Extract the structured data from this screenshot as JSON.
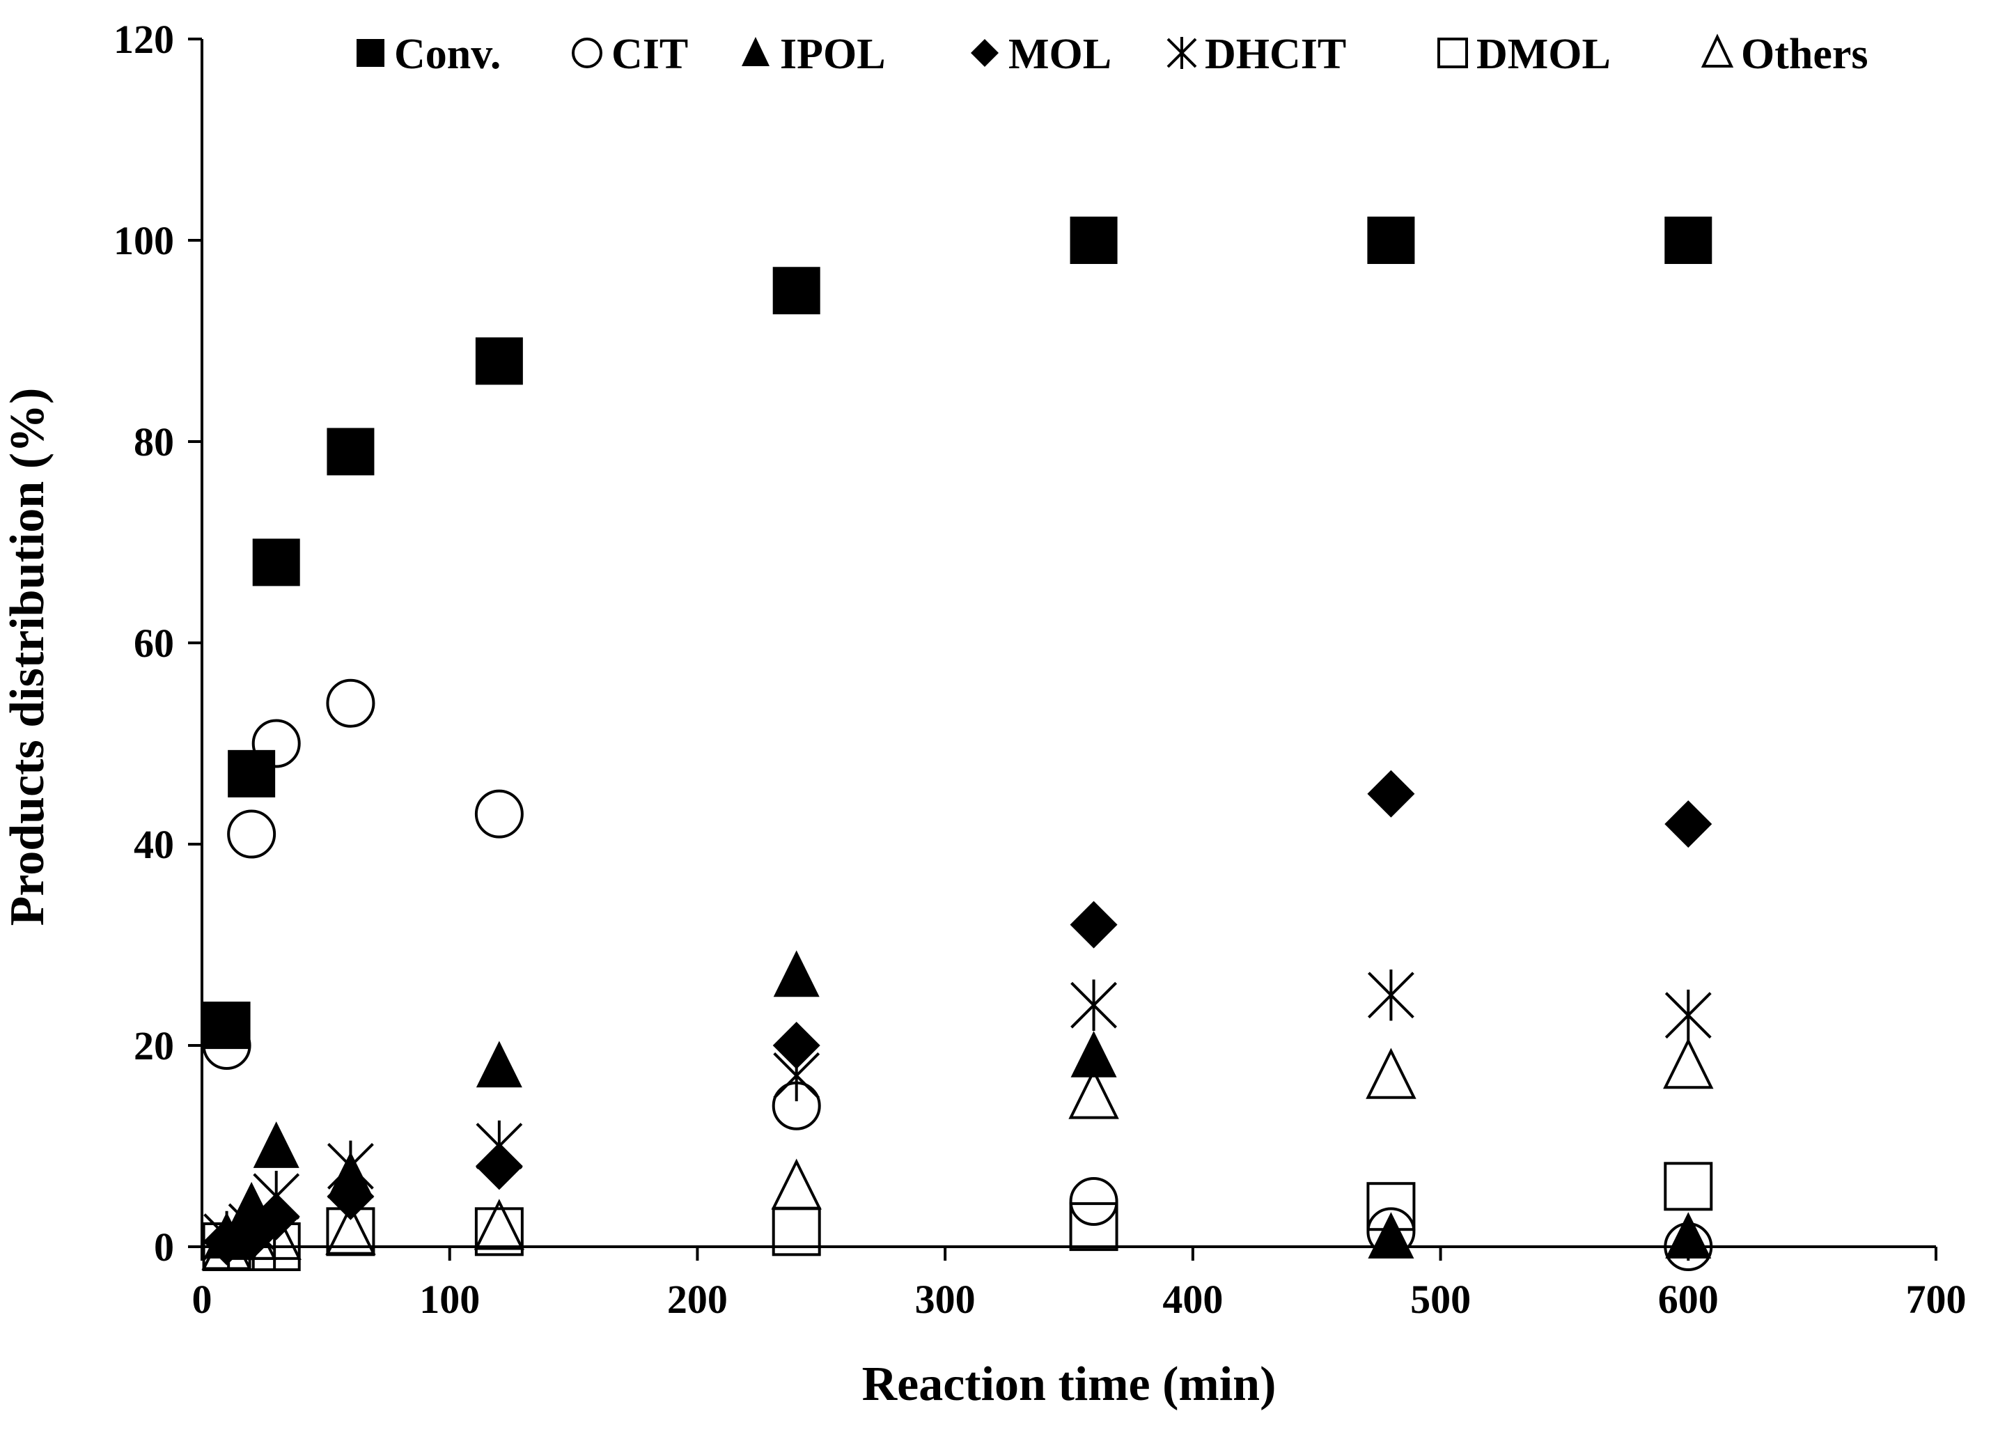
{
  "chart_data": {
    "type": "scatter",
    "title": "",
    "xlabel": "Reaction time (min)",
    "ylabel": "Products distribution (%)",
    "xlim": [
      0,
      700
    ],
    "ylim": [
      0,
      120
    ],
    "xticks": [
      0,
      100,
      200,
      300,
      400,
      500,
      600,
      700
    ],
    "yticks": [
      0,
      20,
      40,
      60,
      80,
      100,
      120
    ],
    "grid": false,
    "legend_position": "top",
    "series": [
      {
        "name": "Conv.",
        "marker": "square-filled",
        "x": [
          10,
          20,
          30,
          60,
          120,
          240,
          360,
          480,
          600
        ],
        "y": [
          22,
          47,
          68,
          79,
          88,
          95,
          100,
          100,
          100
        ]
      },
      {
        "name": "CIT",
        "marker": "circle-open",
        "x": [
          10,
          20,
          30,
          60,
          120,
          240,
          360,
          480,
          600
        ],
        "y": [
          20,
          41,
          50,
          54,
          43,
          14,
          4.5,
          1.5,
          0
        ]
      },
      {
        "name": "IPOL",
        "marker": "triangle-filled",
        "x": [
          10,
          20,
          30,
          60,
          120,
          240,
          360,
          480,
          600
        ],
        "y": [
          1,
          4,
          10,
          7,
          18,
          27,
          19,
          1,
          1
        ]
      },
      {
        "name": "MOL",
        "marker": "diamond-filled",
        "x": [
          10,
          20,
          30,
          60,
          120,
          240,
          360,
          480,
          600
        ],
        "y": [
          0.5,
          1,
          3,
          5,
          8,
          20,
          32,
          45,
          42
        ]
      },
      {
        "name": "DHCIT",
        "marker": "asterisk",
        "x": [
          10,
          20,
          30,
          60,
          120,
          240,
          360,
          480,
          600
        ],
        "y": [
          1,
          2,
          5,
          8,
          10,
          17,
          24,
          25,
          23
        ]
      },
      {
        "name": "DMOL",
        "marker": "square-open",
        "x": [
          10,
          20,
          30,
          60,
          120,
          240,
          360,
          480,
          600
        ],
        "y": [
          0,
          0,
          0,
          1.5,
          1.5,
          1.5,
          2,
          4,
          6
        ]
      },
      {
        "name": "Others",
        "marker": "triangle-open",
        "x": [
          10,
          20,
          30,
          60,
          120,
          240,
          360,
          480,
          600
        ],
        "y": [
          0,
          1,
          1,
          1.5,
          2,
          6,
          15,
          17,
          18
        ]
      }
    ]
  }
}
